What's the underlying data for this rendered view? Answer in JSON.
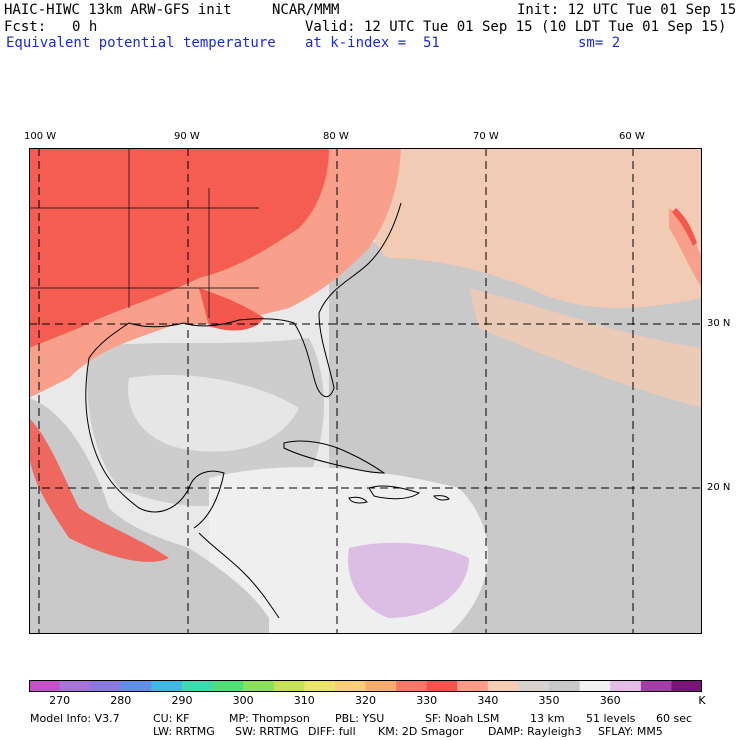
{
  "header": {
    "model": "HAIC-HIWC 13km ARW-GFS init",
    "org": "NCAR/MMM",
    "init": "Init: 12 UTC Tue 01 Sep 15",
    "fcst_label": "Fcst:",
    "fcst_value": "0 h",
    "valid": "Valid: 12 UTC Tue 01 Sep 15 (10 LDT Tue 01 Sep 15)",
    "field": "Equivalent potential temperature",
    "level": "at k-index =  51",
    "smooth": "sm= 2"
  },
  "axes": {
    "lon_labels": [
      "100 W",
      "90 W",
      "80 W",
      "70 W",
      "60 W"
    ],
    "lat_labels": [
      "30 N",
      "20 N"
    ]
  },
  "colorbar": {
    "ticks": [
      "270",
      "280",
      "290",
      "300",
      "310",
      "320",
      "330",
      "340",
      "350",
      "360"
    ],
    "unit": "K",
    "colors": [
      "#c451c8",
      "#a873d6",
      "#8a7ae0",
      "#5f8fe6",
      "#41b8e2",
      "#3fd9b0",
      "#4fe07a",
      "#8ae05a",
      "#c6e254",
      "#eae66a",
      "#f7cf78",
      "#fbac70",
      "#f9776a",
      "#f4534e",
      "#fa9c88",
      "#f3cdb4",
      "#d7d1cf",
      "#c8c8c8",
      "#f1f1f1",
      "#e4bee6",
      "#a33ea8",
      "#7a1578"
    ]
  },
  "footer": {
    "line1": [
      "Model Info: V3.7",
      "CU: KF",
      "MP: Thompson",
      "PBL: YSU",
      "SF: Noah LSM",
      "13 km",
      "51 levels",
      "60 sec"
    ],
    "line2": [
      "LW: RRTMG",
      "SW: RRTMG",
      "DIFF: full",
      "KM: 2D Smagor",
      "DAMP: Rayleigh3",
      "SFLAY: MM5"
    ]
  },
  "colors": {
    "warm": "#f4574d",
    "salmon": "#f8a08b",
    "peach": "#f1cbb4",
    "gray": "#c9c9c9",
    "light": "#efefef",
    "lavender": "#dcbde3"
  }
}
